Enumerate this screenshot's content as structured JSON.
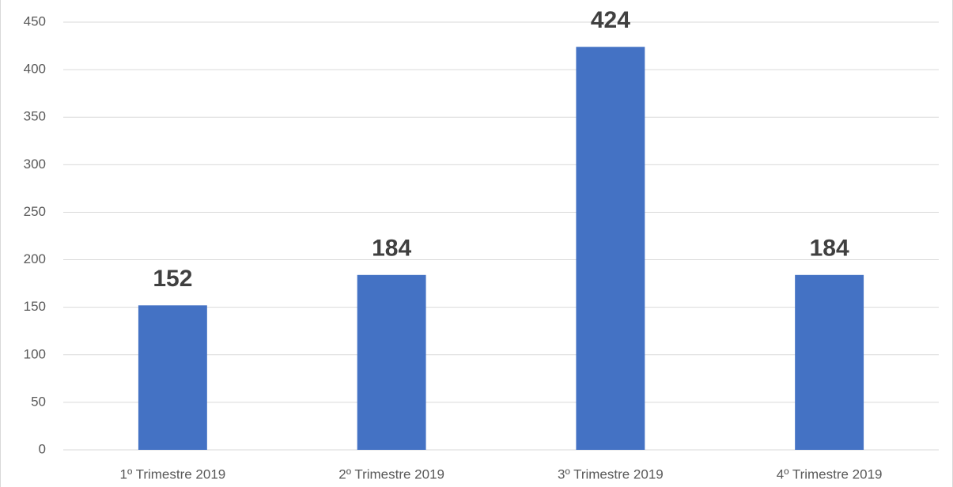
{
  "chart_data": {
    "type": "bar",
    "categories": [
      "1º Trimestre 2019",
      "2º Trimestre 2019",
      "3º Trimestre 2019",
      "4º Trimestre 2019"
    ],
    "values": [
      152,
      184,
      424,
      184
    ],
    "color": "#4472c4",
    "ylim": [
      0,
      450
    ],
    "yticks": [
      0,
      50,
      100,
      150,
      200,
      250,
      300,
      350,
      400,
      450
    ],
    "grid": true,
    "data_labels": true
  }
}
